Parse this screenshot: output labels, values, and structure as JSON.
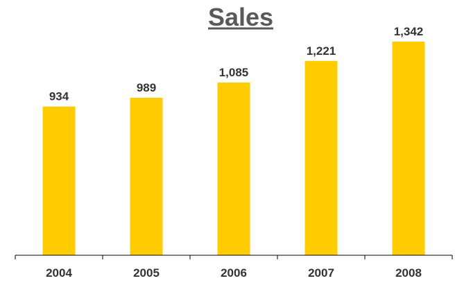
{
  "chart_data": {
    "type": "bar",
    "title": "Sales",
    "categories": [
      "2004",
      "2005",
      "2006",
      "2007",
      "2008"
    ],
    "values": [
      934,
      989,
      1085,
      1221,
      1342
    ],
    "value_labels": [
      "934",
      "989",
      "1,085",
      "1,221",
      "1,342"
    ],
    "xlabel": "",
    "ylabel": "",
    "ylim": [
      0,
      1400
    ],
    "grid": false,
    "y_axis_visible": false,
    "legend": "none",
    "bar_color": "#FFCC00",
    "title_color": "#595959",
    "title_underline": true
  }
}
